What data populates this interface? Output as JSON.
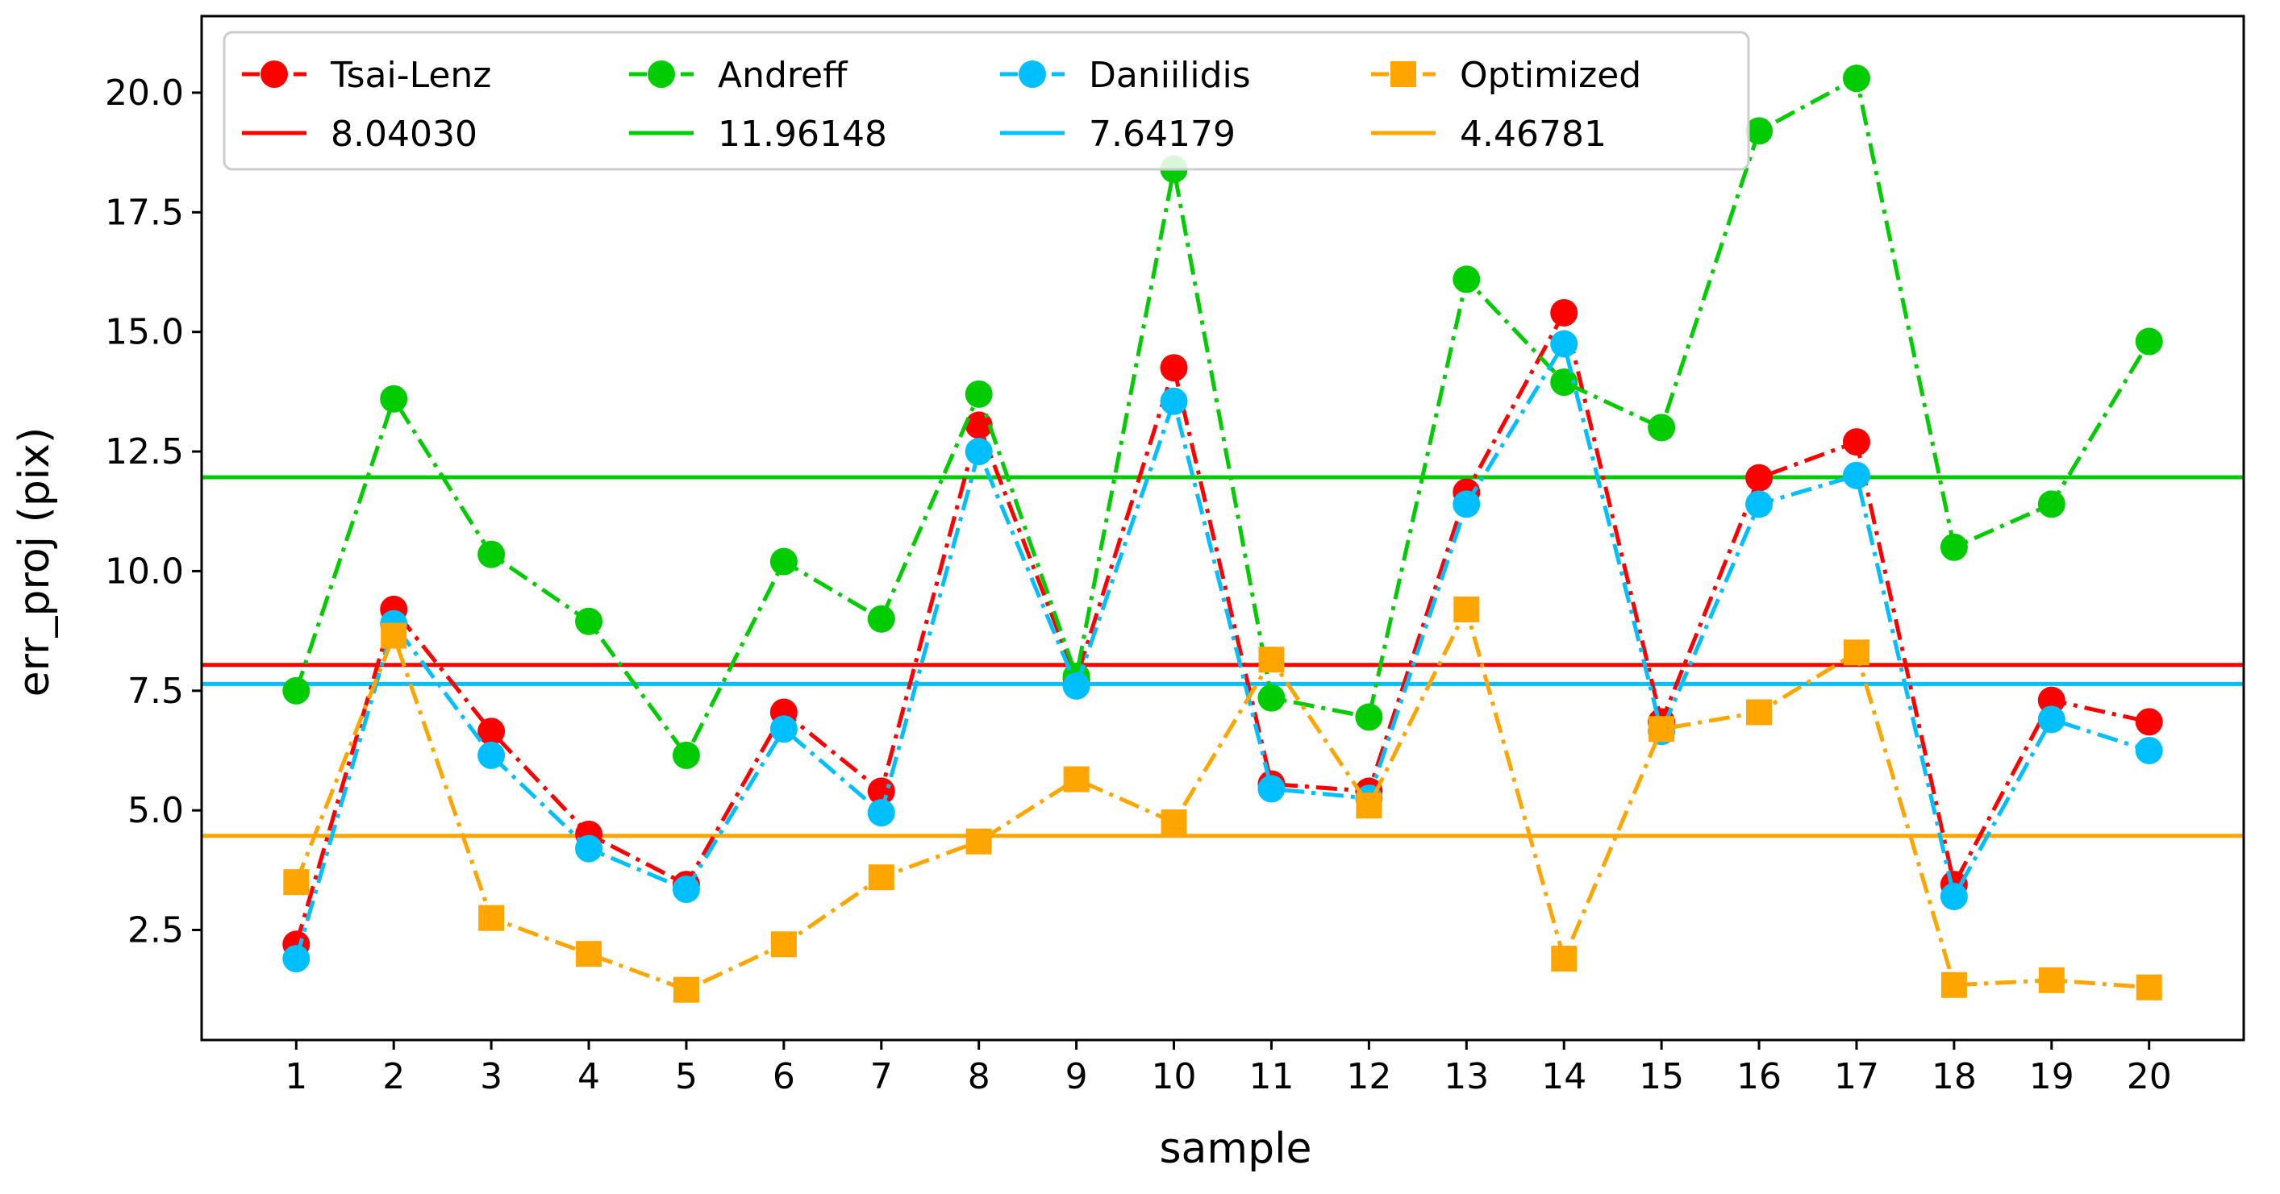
{
  "chart_data": {
    "type": "line",
    "title": "",
    "xlabel": "sample",
    "ylabel": "err_proj (pix)",
    "xlim": [
      0.03,
      20.97
    ],
    "ylim": [
      0.2,
      21.6
    ],
    "x": [
      1,
      2,
      3,
      4,
      5,
      6,
      7,
      8,
      9,
      10,
      11,
      12,
      13,
      14,
      15,
      16,
      17,
      18,
      19,
      20
    ],
    "x_tick_labels": [
      "1",
      "2",
      "3",
      "4",
      "5",
      "6",
      "7",
      "8",
      "9",
      "10",
      "11",
      "12",
      "13",
      "14",
      "15",
      "16",
      "17",
      "18",
      "19",
      "20"
    ],
    "y_ticks": [
      2.5,
      5.0,
      7.5,
      10.0,
      12.5,
      15.0,
      17.5,
      20.0
    ],
    "y_tick_labels": [
      "2.5",
      "5.0",
      "7.5",
      "10.0",
      "12.5",
      "15.0",
      "17.5",
      "20.0"
    ],
    "legend_position": "top-left",
    "legend_columns": 4,
    "series": [
      {
        "name": "Tsai-Lenz",
        "color": "#ff0000",
        "marker": "circle",
        "values": [
          2.2,
          9.2,
          6.65,
          4.5,
          3.45,
          7.05,
          5.4,
          13.05,
          7.75,
          14.25,
          5.55,
          5.4,
          11.65,
          15.4,
          6.85,
          11.95,
          12.7,
          3.45,
          7.3,
          6.85
        ],
        "mean_label": "8.04030",
        "mean": 8.0403
      },
      {
        "name": "Andreff",
        "color": "#00cc00",
        "marker": "circle",
        "values": [
          7.5,
          13.6,
          10.35,
          8.95,
          6.15,
          10.2,
          9.0,
          13.7,
          7.8,
          18.4,
          7.35,
          6.95,
          16.1,
          13.95,
          13.0,
          19.2,
          20.3,
          10.5,
          11.4,
          14.8
        ],
        "mean_label": "11.96148",
        "mean": 11.96148
      },
      {
        "name": "Daniilidis",
        "color": "#00bfff",
        "marker": "circle",
        "values": [
          1.9,
          8.9,
          6.15,
          4.2,
          3.35,
          6.7,
          4.95,
          12.5,
          7.6,
          13.55,
          5.45,
          5.25,
          11.4,
          14.75,
          6.65,
          11.4,
          12.0,
          3.2,
          6.9,
          6.25
        ],
        "mean_label": "7.64179",
        "mean": 7.64179
      },
      {
        "name": "Optimized",
        "color": "#ffa500",
        "marker": "square",
        "values": [
          3.5,
          8.65,
          2.75,
          2.0,
          1.25,
          2.2,
          3.6,
          4.35,
          5.65,
          4.75,
          8.15,
          5.1,
          9.2,
          1.9,
          6.7,
          7.05,
          8.3,
          1.35,
          1.45,
          1.3
        ],
        "mean_label": "4.46781",
        "mean": 4.46781
      }
    ]
  }
}
